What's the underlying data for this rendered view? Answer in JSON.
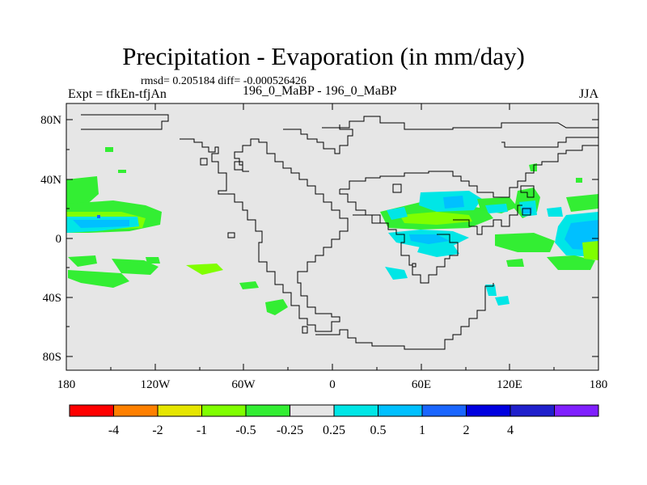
{
  "title": "Precipitation - Evaporation (in mm/day)",
  "stats_line": "rmsd= 0.205184 diff= -0.000526426",
  "expt_label": "Expt = tfkEn-tfjAn",
  "cases_label": "196_0_MaBP - 196_0_MaBP",
  "season_label": "JJA",
  "lat_ticks": [
    "80N",
    "40N",
    "0",
    "40S",
    "80S"
  ],
  "lon_ticks": [
    "180",
    "120W",
    "60W",
    "0",
    "60E",
    "120E",
    "180"
  ],
  "colorbar": {
    "colors": [
      "#ff0000",
      "#ff8000",
      "#e6e600",
      "#80ff00",
      "#33ee33",
      "#e6e6e6",
      "#00e6e6",
      "#00c0ff",
      "#1a66ff",
      "#0000e0",
      "#2020cc",
      "#8020ff"
    ],
    "labels": [
      "-4",
      "-2",
      "-1",
      "-0.5",
      "-0.25",
      "0.25",
      "0.5",
      "1",
      "2",
      "4"
    ]
  }
}
